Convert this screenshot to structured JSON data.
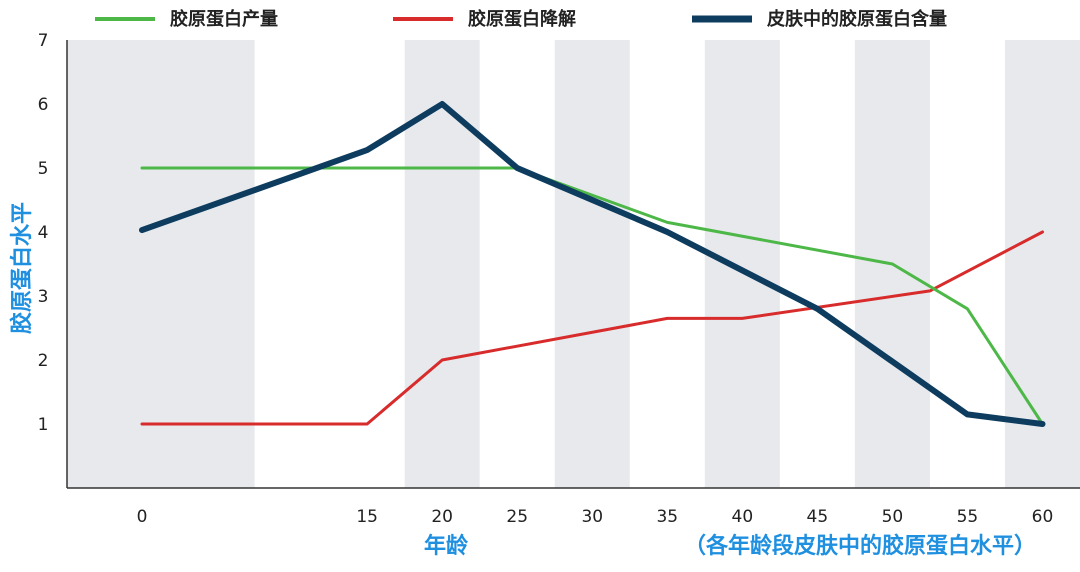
{
  "chart_data": {
    "type": "line",
    "title": "",
    "xlabel": "年龄",
    "ylabel": "胶原蛋白水平",
    "note": "（各年龄段皮肤中的胶原蛋白水平）",
    "x": [
      0,
      15,
      20,
      25,
      30,
      35,
      40,
      45,
      50,
      55,
      60
    ],
    "xlim": [
      -5,
      62.5
    ],
    "ylim": [
      0,
      7
    ],
    "yticks": [
      1,
      2,
      3,
      4,
      5,
      6,
      7
    ],
    "grid": "alternating vertical bands",
    "legend_position": "top",
    "series": [
      {
        "name": "胶原蛋白产量",
        "color": "#4db848",
        "x": [
          0,
          25,
          35,
          50,
          55,
          60
        ],
        "values": [
          5,
          5,
          4.15,
          3.5,
          2.8,
          1
        ]
      },
      {
        "name": "胶原蛋白降解",
        "color": "#d82b2b",
        "x": [
          0,
          15,
          20,
          35,
          40,
          52.5,
          60
        ],
        "values": [
          1,
          1,
          2,
          2.65,
          2.65,
          3.08,
          4
        ]
      },
      {
        "name": "皮肤中的胶原蛋白含量",
        "color": "#0d3c5f",
        "x": [
          0,
          15,
          20,
          25,
          35,
          45,
          55,
          60
        ],
        "values": [
          4.03,
          5.28,
          6,
          5,
          4,
          2.8,
          1.15,
          1
        ]
      }
    ]
  },
  "colors": {
    "band": "#e7e9ed",
    "axis": "#333333",
    "title_blue": "#1f8fe0"
  }
}
